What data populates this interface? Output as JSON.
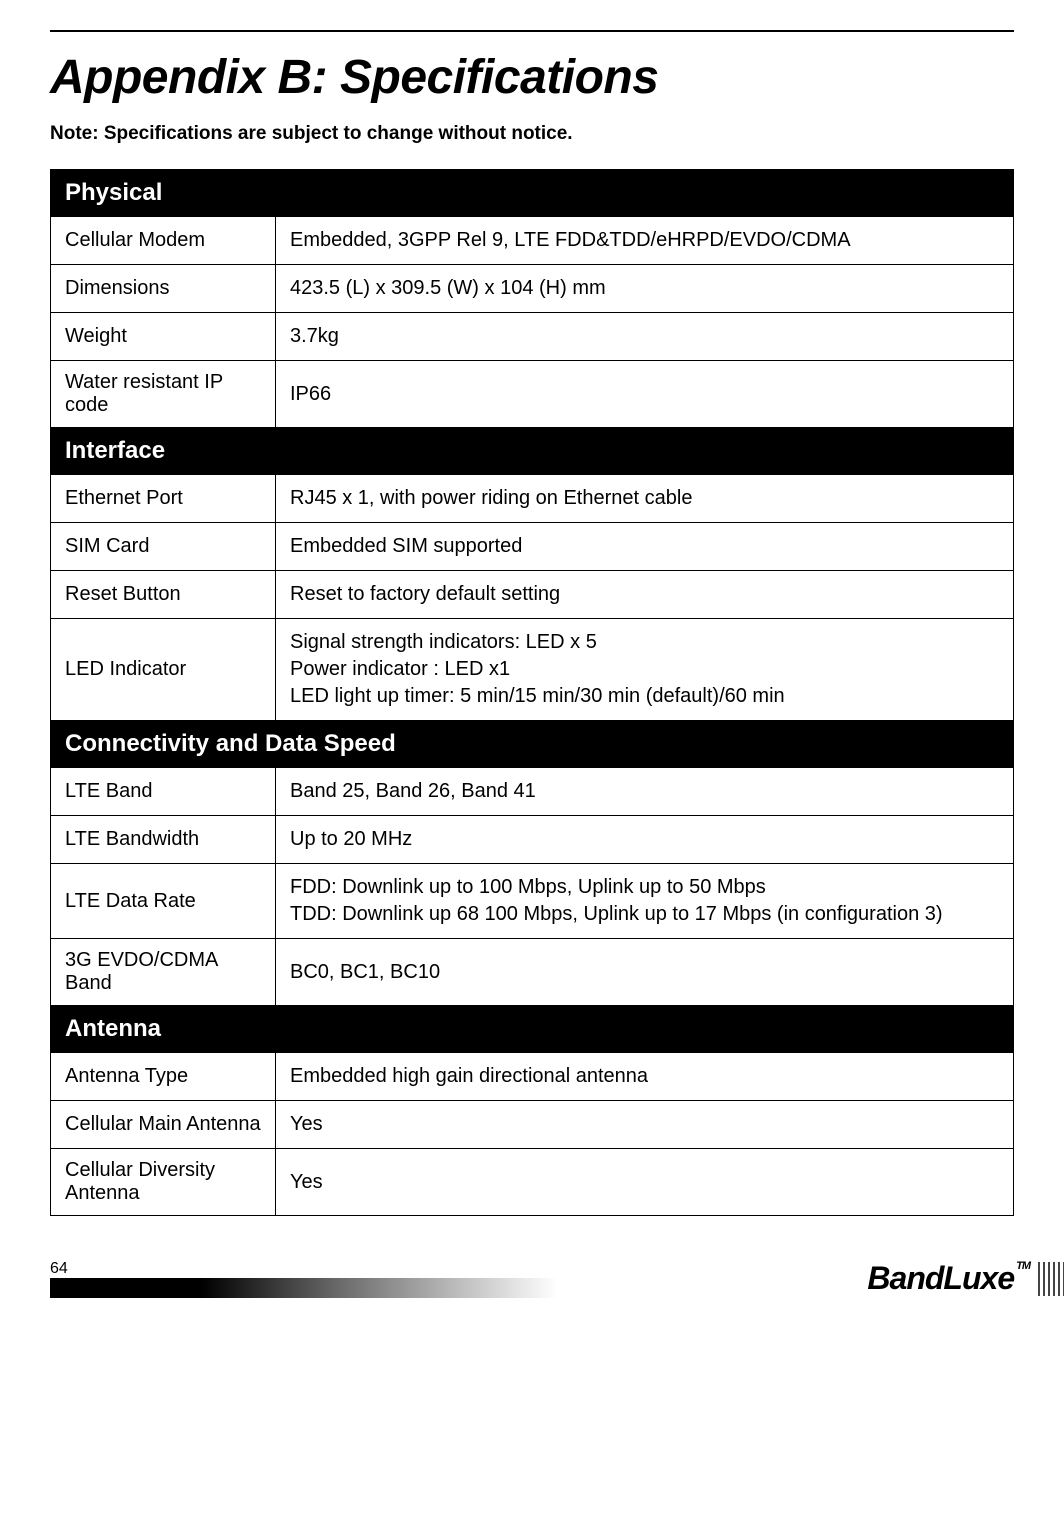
{
  "page": {
    "title": "Appendix B: Specifications",
    "note": "Note: Specifications are subject to change without notice.",
    "page_number": "64",
    "brand": "BandLuxe",
    "tm": "TM"
  },
  "sections": {
    "physical": {
      "header": "Physical",
      "rows": {
        "cellular_modem": {
          "label": "Cellular Modem",
          "value": "Embedded, 3GPP Rel 9, LTE FDD&TDD/eHRPD/EVDO/CDMA"
        },
        "dimensions": {
          "label": "Dimensions",
          "value": "423.5 (L) x 309.5 (W) x 104 (H) mm"
        },
        "weight": {
          "label": "Weight",
          "value": "3.7kg"
        },
        "water_resistant": {
          "label": "Water resistant IP code",
          "value": "IP66"
        }
      }
    },
    "interface": {
      "header": "Interface",
      "rows": {
        "ethernet": {
          "label": "Ethernet Port",
          "value": "RJ45 x 1, with power riding on Ethernet cable"
        },
        "sim": {
          "label": "SIM Card",
          "value": "Embedded SIM supported"
        },
        "reset": {
          "label": "Reset Button",
          "value": "Reset to factory default setting"
        },
        "led": {
          "label": "LED Indicator",
          "value": "Signal strength indicators: LED x 5\nPower indicator : LED x1\nLED light up timer: 5 min/15 min/30 min (default)/60 min"
        }
      }
    },
    "connectivity": {
      "header": "Connectivity and Data Speed",
      "rows": {
        "lte_band": {
          "label": "LTE Band",
          "value": "Band 25, Band 26, Band 41"
        },
        "lte_bandwidth": {
          "label": "LTE Bandwidth",
          "value": "Up to 20 MHz"
        },
        "lte_data_rate": {
          "label": "LTE Data Rate",
          "value": "FDD: Downlink up to 100 Mbps, Uplink up to 50 Mbps\nTDD: Downlink up 68 100 Mbps, Uplink up to 17 Mbps (in configuration 3)"
        },
        "evdo": {
          "label": "3G EVDO/CDMA Band",
          "value": "BC0, BC1, BC10"
        }
      }
    },
    "antenna": {
      "header": "Antenna",
      "rows": {
        "antenna_type": {
          "label": "Antenna Type",
          "value": "Embedded high gain directional antenna"
        },
        "cellular_main": {
          "label": "Cellular Main Antenna",
          "value": "Yes"
        },
        "cellular_diversity": {
          "label": "Cellular Diversity Antenna",
          "value": "Yes"
        }
      }
    }
  },
  "styling": {
    "title_fontsize": 48,
    "note_fontsize": 19,
    "cell_fontsize": 20,
    "header_fontsize": 24,
    "header_bg": "#000000",
    "header_color": "#ffffff",
    "border_color": "#000000",
    "body_bg": "#ffffff",
    "text_color": "#000000",
    "label_col_width": 225
  }
}
